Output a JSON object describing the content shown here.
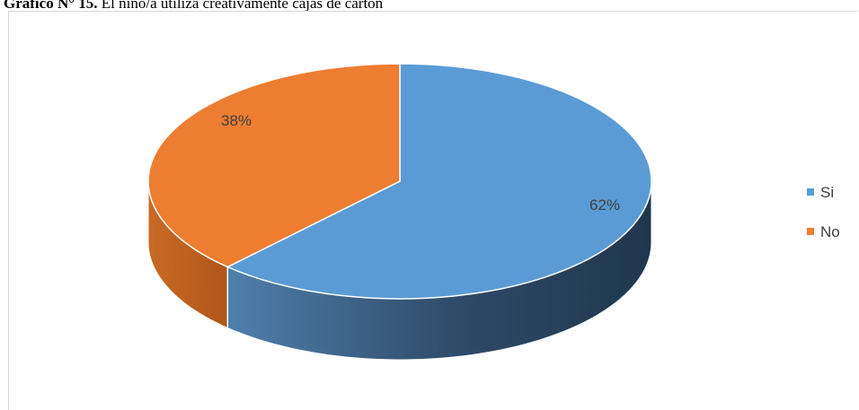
{
  "caption": {
    "prefix": "Gráfico N° 15.",
    "text": " El niño/a utiliza creativamente cajas de cartón"
  },
  "chart_data": {
    "type": "pie",
    "style": "3d",
    "categories": [
      "Si",
      "No"
    ],
    "values": [
      62,
      38
    ],
    "value_labels": [
      "62%",
      "38%"
    ],
    "colors": [
      "#5b9bd5",
      "#ed7d31"
    ],
    "side_colors": [
      "#3f6f9e",
      "#c8641f"
    ],
    "legend_position": "right"
  }
}
